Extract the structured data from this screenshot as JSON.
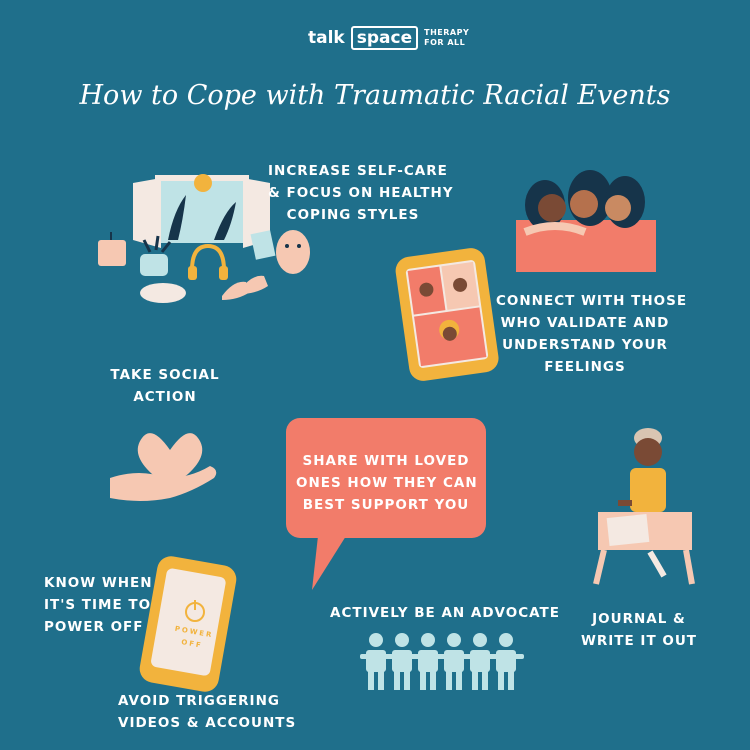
{
  "logo": {
    "word_1": "talk",
    "word_2": "space",
    "tagline_1": "THERAPY",
    "tagline_2": "FOR ALL"
  },
  "title": "How to Cope with Traumatic Racial Events",
  "tips": {
    "self_care": [
      "INCREASE SELF-CARE",
      "& FOCUS ON HEALTHY",
      "COPING STYLES"
    ],
    "connect": [
      "CONNECT WITH THOSE",
      "WHO VALIDATE AND",
      "UNDERSTAND YOUR",
      "FEELINGS"
    ],
    "social_action": [
      "TAKE SOCIAL",
      "ACTION"
    ],
    "share": [
      "SHARE WITH LOVED",
      "ONES HOW THEY CAN",
      "BEST SUPPORT YOU"
    ],
    "journal": [
      "JOURNAL &",
      "WRITE IT OUT"
    ],
    "power_off": [
      "KNOW WHEN",
      "IT'S TIME TO",
      "POWER OFF"
    ],
    "advocate": [
      "ACTIVELY BE AN ADVOCATE"
    ],
    "avoid": [
      "AVOID TRIGGERING",
      "VIDEOS & ACCOUNTS"
    ]
  },
  "phone_screen_text": [
    "POWER",
    "OFF"
  ],
  "colors": {
    "background": "#1f6f8b",
    "coral": "#f27c6a",
    "phone_yellow": "#f2b33d",
    "peach": "#f6c8b2",
    "teal_light": "#bfe3e6",
    "dark_navy": "#16344a"
  }
}
